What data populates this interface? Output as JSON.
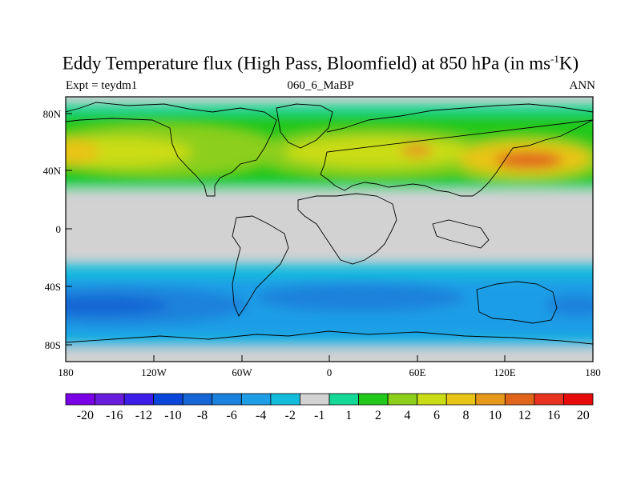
{
  "title": {
    "main": "Eddy Temperature flux (High Pass, Bloomfield) at 850 hPa (in ms",
    "sup": "-1",
    "tail": "K)"
  },
  "subtitles": {
    "left": "Expt = teydm1",
    "center": "060_6_MaBP",
    "right": "ANN"
  },
  "axes": {
    "lat_ticks": [
      "80N",
      "40N",
      "0",
      "40S",
      "80S"
    ],
    "lon_ticks": [
      "180",
      "120W",
      "60W",
      "0",
      "60E",
      "120E",
      "180"
    ]
  },
  "colorbar": {
    "labels": [
      "-20",
      "-16",
      "-12",
      "-10",
      "-8",
      "-6",
      "-4",
      "-2",
      "-1",
      "1",
      "2",
      "4",
      "6",
      "8",
      "10",
      "12",
      "16",
      "20"
    ],
    "colors": [
      "#7a00e6",
      "#6a1cdc",
      "#3c1ee8",
      "#0a46dc",
      "#1466d4",
      "#1a82dc",
      "#1e9ee6",
      "#12bcdc",
      "#d2d2d2",
      "#14d896",
      "#22c81a",
      "#8ccf1a",
      "#cadc14",
      "#e8c416",
      "#e6981a",
      "#e0641a",
      "#e6321e",
      "#e60a0a"
    ]
  },
  "chart_data": {
    "type": "heatmap",
    "title": "Eddy Temperature flux (High Pass, Bloomfield) at 850 hPa (in ms-1K)",
    "x_range": [
      -180,
      180
    ],
    "y_range": [
      -90,
      90
    ],
    "colorbar_levels": [
      -20,
      -16,
      -12,
      -10,
      -8,
      -6,
      -4,
      -2,
      -1,
      1,
      2,
      4,
      6,
      8,
      10,
      12,
      16,
      20
    ],
    "zonal_bands": [
      {
        "lat_range": [
          70,
          90
        ],
        "value": 0
      },
      {
        "lat_range": [
          55,
          70
        ],
        "value": 3
      },
      {
        "lat_range": [
          30,
          55
        ],
        "value": 6
      },
      {
        "lat_range": [
          25,
          30
        ],
        "value": 2
      },
      {
        "lat_range": [
          -30,
          25
        ],
        "value": 0
      },
      {
        "lat_range": [
          -42,
          -30
        ],
        "value": -3
      },
      {
        "lat_range": [
          -62,
          -42
        ],
        "value": -7
      },
      {
        "lat_range": [
          -75,
          -62
        ],
        "value": -3
      },
      {
        "lat_range": [
          -90,
          -75
        ],
        "value": 0
      }
    ],
    "maxima": [
      {
        "lon": 145,
        "lat": 45,
        "value": 14
      },
      {
        "lon": -175,
        "lat": 48,
        "value": 9
      },
      {
        "lon": 40,
        "lat": 45,
        "value": 8
      },
      {
        "lon": -165,
        "lat": -50,
        "value": -9
      }
    ]
  }
}
